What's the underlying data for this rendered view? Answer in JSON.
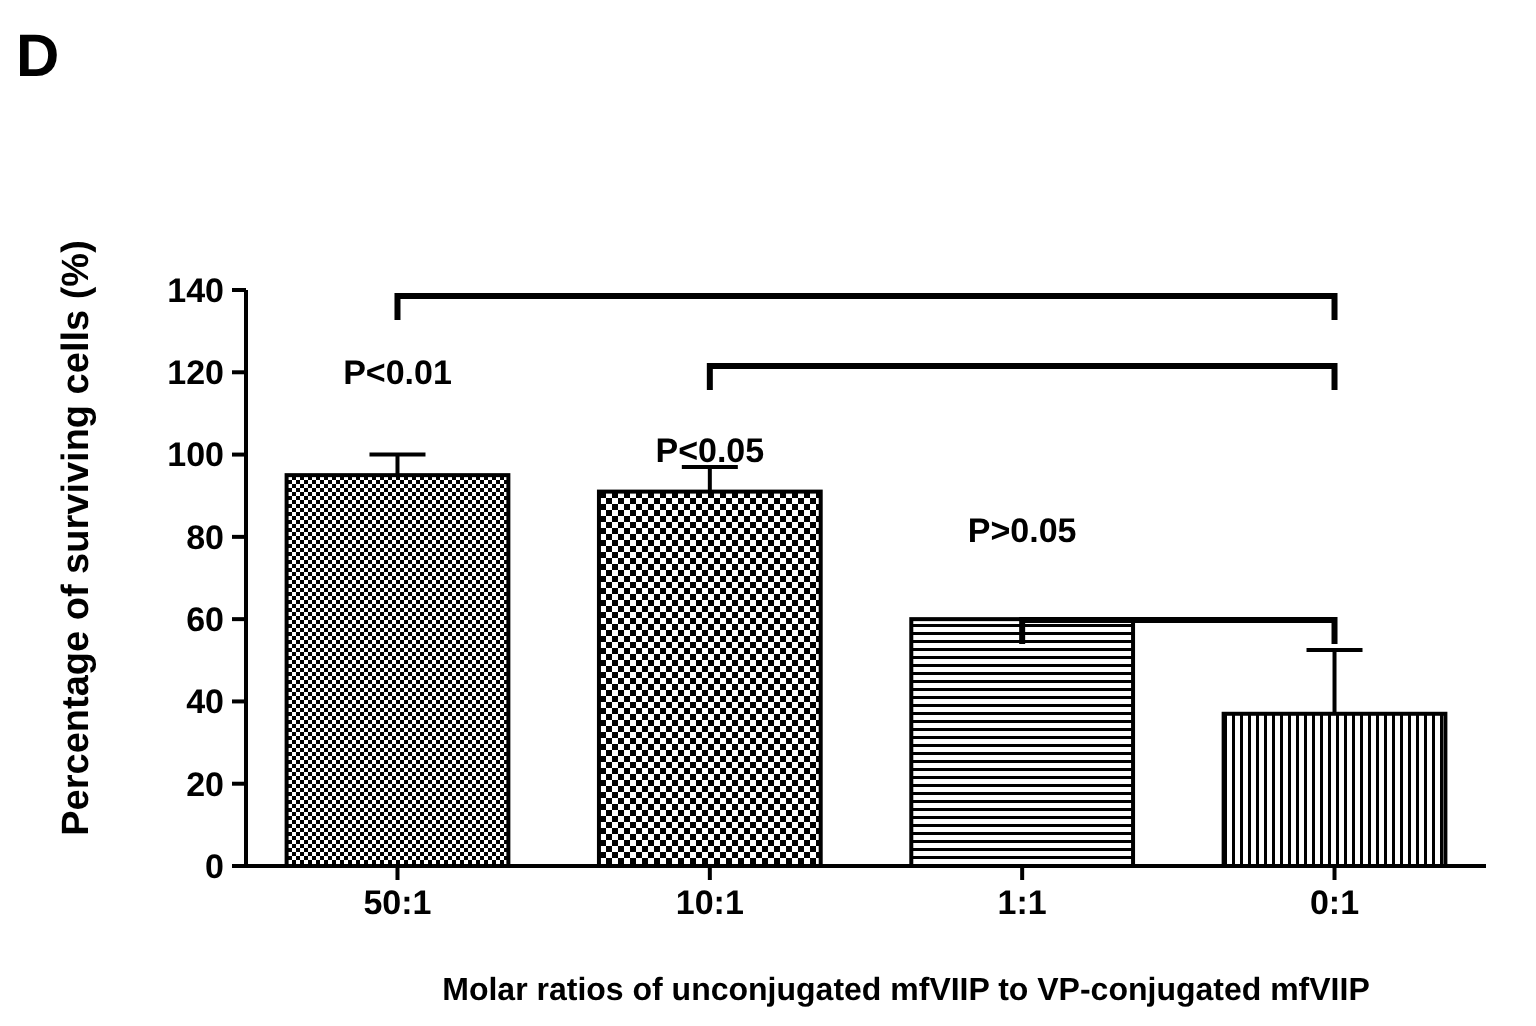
{
  "chart_data": {
    "type": "bar",
    "xlabel": "Molar ratios of unconjugated mfVIIP to VP-conjugated mfVIIP",
    "ylabel": "Percentage of surviving cells (%)",
    "categories": [
      "50:1",
      "10:1",
      "1:1",
      "0:1"
    ],
    "values": [
      95,
      91,
      60,
      37
    ],
    "errors": [
      [
        95,
        100
      ],
      [
        91,
        97
      ],
      null,
      [
        37,
        52.5
      ]
    ],
    "colors": [
      "#000000",
      "#000000",
      "#000000",
      "#000000"
    ],
    "ylim": [
      0,
      140
    ],
    "yticks": [
      0,
      20,
      40,
      60,
      80,
      100,
      120,
      140
    ],
    "annotations": [
      "D",
      "P<0.01",
      "P<0.05",
      "P>0.05"
    ]
  }
}
